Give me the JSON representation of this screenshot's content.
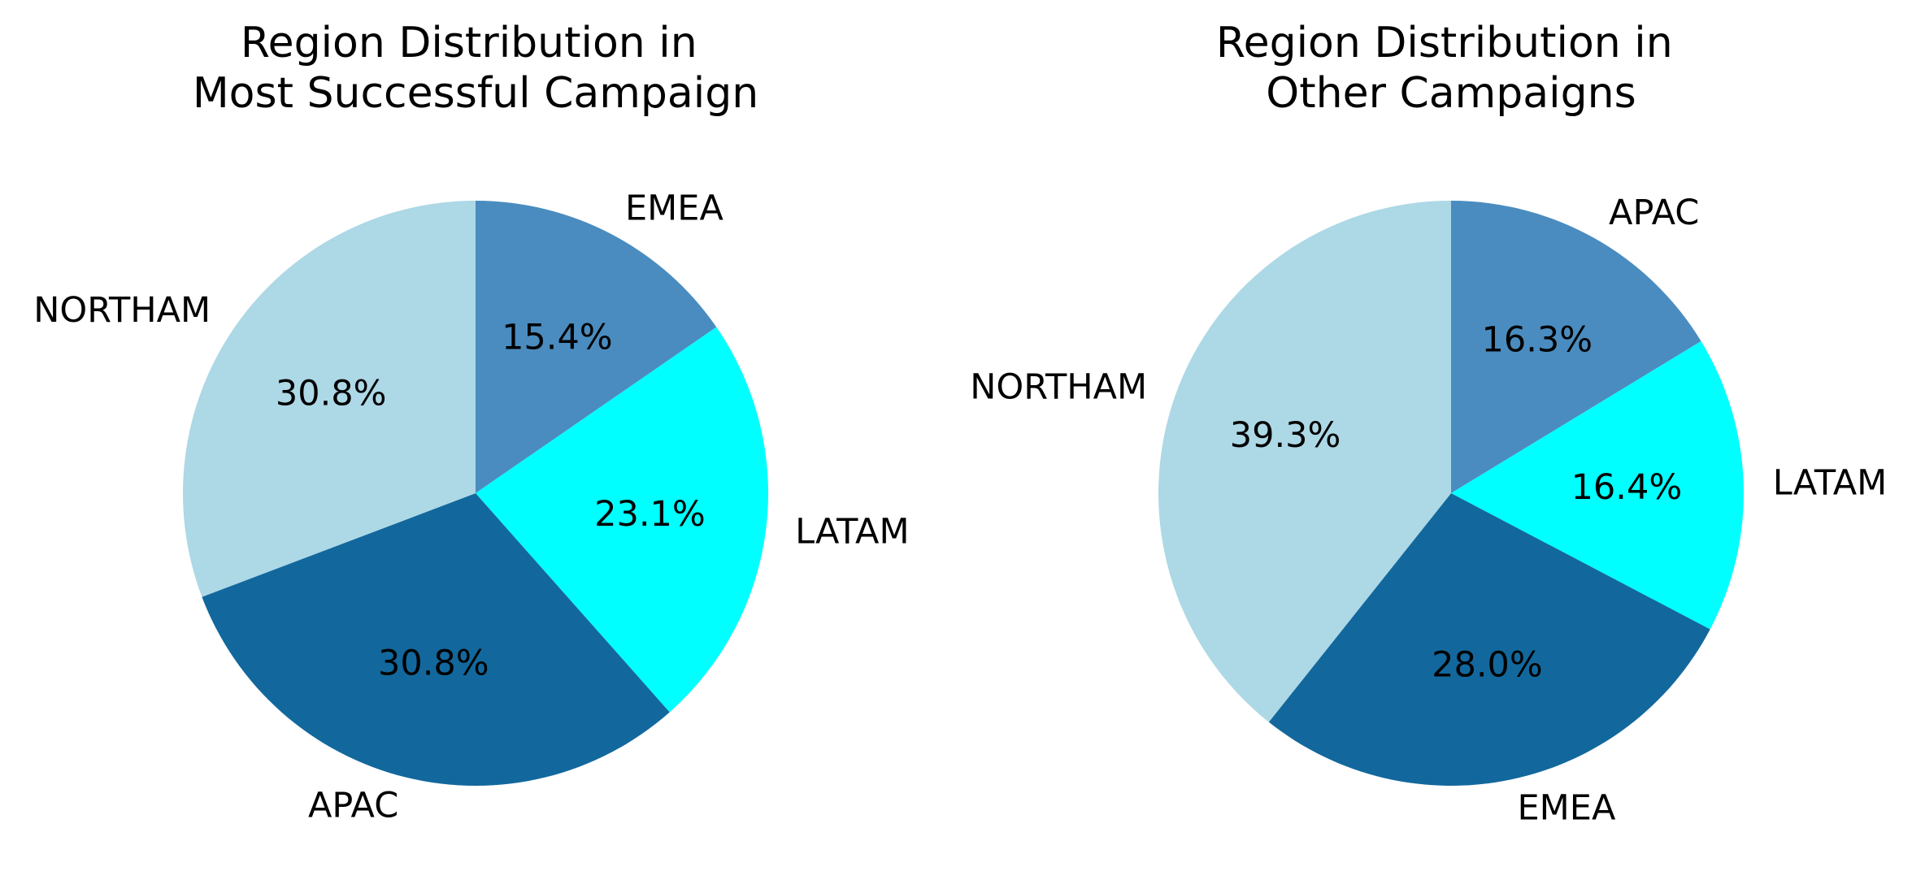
{
  "chart_data": [
    {
      "type": "pie",
      "title": "Region Distribution in\nMost Successful Campaign",
      "title_lines": [
        "Region Distribution in",
        "Most Successful Campaign"
      ],
      "slices": [
        {
          "label": "EMEA",
          "value": 15.4,
          "pct_label": "15.4%",
          "color": "#4A8CBF"
        },
        {
          "label": "LATAM",
          "value": 23.1,
          "pct_label": "23.1%",
          "color": "#00FFFF"
        },
        {
          "label": "APAC",
          "value": 30.8,
          "pct_label": "30.8%",
          "color": "#12689D"
        },
        {
          "label": "NORTHAM",
          "value": 30.8,
          "pct_label": "30.8%",
          "color": "#ADD8E6"
        }
      ],
      "start_angle": "top (12 o'clock)",
      "direction": "clockwise"
    },
    {
      "type": "pie",
      "title": "Region Distribution in\nOther Campaigns",
      "title_lines": [
        "Region Distribution in",
        "Other Campaigns"
      ],
      "slices": [
        {
          "label": "APAC",
          "value": 16.3,
          "pct_label": "16.3%",
          "color": "#4A8CBF"
        },
        {
          "label": "LATAM",
          "value": 16.4,
          "pct_label": "16.4%",
          "color": "#00FFFF"
        },
        {
          "label": "EMEA",
          "value": 28.0,
          "pct_label": "28.0%",
          "color": "#12689D"
        },
        {
          "label": "NORTHAM",
          "value": 39.3,
          "pct_label": "39.3%",
          "color": "#ADD8E6"
        }
      ],
      "start_angle": "top (12 o'clock)",
      "direction": "clockwise"
    }
  ]
}
